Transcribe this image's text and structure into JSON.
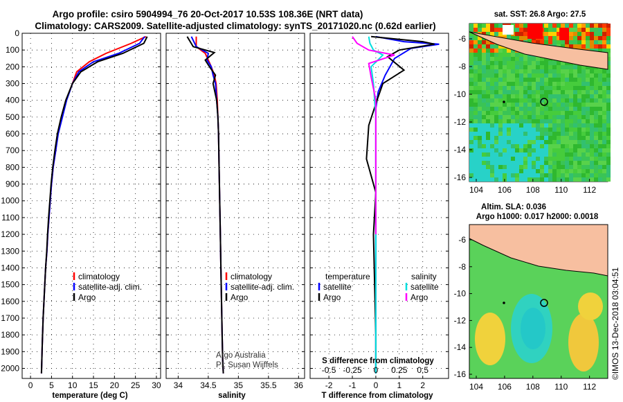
{
  "header": {
    "title_line1": "Argo profile: csiro 5904994_76 20-Oct-2017 10.53S 108.36E (NRT data)",
    "title_line2": "Climatology: CARS2009. Satellite-adjusted climatology: synTS_20171020.nc (0.62d earlier)"
  },
  "colors": {
    "climatology": "#ff0000",
    "satellite": "#0000ff",
    "argo": "#000000",
    "sal_satellite": "#00e0e0",
    "sal_argo": "#ff00ff"
  },
  "chart_data": [
    {
      "type": "line",
      "xlabel": "temperature (deg C)",
      "ylabel": "",
      "xlim": [
        -2,
        31
      ],
      "ylim": [
        2060,
        0
      ],
      "xticks": [
        0,
        5,
        10,
        15,
        20,
        25,
        30
      ],
      "yticks": [
        0,
        100,
        200,
        300,
        400,
        500,
        600,
        700,
        800,
        900,
        1000,
        1100,
        1200,
        1300,
        1400,
        1500,
        1600,
        1700,
        1800,
        1900,
        2000
      ],
      "legend": [
        "climatology",
        "satellite-adj. clim.",
        "Argo"
      ],
      "series": [
        {
          "name": "climatology",
          "color": "#ff0000",
          "x": [
            27.5,
            24,
            18,
            14,
            11,
            10,
            8.5,
            7.5,
            6.5,
            6,
            5.4,
            5,
            4.7,
            4.4,
            4.1,
            3.9,
            3.6,
            3.4,
            3.2,
            3,
            2.8,
            2.6
          ],
          "y": [
            20,
            60,
            120,
            170,
            230,
            300,
            400,
            500,
            600,
            700,
            800,
            900,
            1000,
            1100,
            1200,
            1300,
            1400,
            1500,
            1600,
            1700,
            1850,
            2030
          ]
        },
        {
          "name": "satellite-adj. clim.",
          "color": "#0000ff",
          "x": [
            27.2,
            26,
            21,
            15,
            11.5,
            10,
            8.6,
            7.6,
            6.6,
            6,
            5.4,
            5,
            4.7,
            4.4,
            4.1,
            3.9,
            3.6,
            3.4,
            3.2,
            3,
            2.8,
            2.6
          ],
          "y": [
            20,
            60,
            120,
            170,
            230,
            300,
            400,
            500,
            600,
            700,
            800,
            900,
            1000,
            1100,
            1200,
            1300,
            1400,
            1500,
            1600,
            1700,
            1850,
            2030
          ]
        },
        {
          "name": "Argo",
          "color": "#000000",
          "x": [
            27.8,
            27,
            22,
            16,
            12,
            10,
            8.4,
            7.3,
            6.4,
            5.8,
            5.3,
            4.9,
            4.6,
            4.3,
            4.05,
            3.85,
            3.6,
            3.4,
            3.2,
            3,
            2.8,
            2.6
          ],
          "y": [
            20,
            60,
            120,
            170,
            230,
            300,
            400,
            500,
            600,
            700,
            800,
            900,
            1000,
            1100,
            1200,
            1300,
            1400,
            1500,
            1600,
            1700,
            1850,
            2030
          ]
        }
      ]
    },
    {
      "type": "line",
      "xlabel": "salinity",
      "ylabel": "",
      "xlim": [
        33.8,
        36.1
      ],
      "ylim": [
        2060,
        0
      ],
      "xticks": [
        34,
        34.5,
        35,
        35.5,
        36
      ],
      "legend": [
        "climatology",
        "satellite-adj. clim.",
        "Argo"
      ],
      "series": [
        {
          "name": "climatology",
          "color": "#ff0000",
          "x": [
            34.3,
            34.3,
            34.45,
            34.5,
            34.55,
            34.6,
            34.63,
            34.65,
            34.66,
            34.67,
            34.68,
            34.69,
            34.7,
            34.71,
            34.72,
            34.73,
            34.74,
            34.75
          ],
          "y": [
            20,
            80,
            120,
            160,
            200,
            250,
            300,
            400,
            500,
            600,
            800,
            1000,
            1200,
            1400,
            1600,
            1800,
            1950,
            2030
          ]
        },
        {
          "name": "satellite-adj. clim.",
          "color": "#0000ff",
          "x": [
            34.22,
            34.3,
            34.5,
            34.48,
            34.55,
            34.58,
            34.62,
            34.64,
            34.66,
            34.67,
            34.68,
            34.69,
            34.7,
            34.71,
            34.72,
            34.73,
            34.74,
            34.75
          ],
          "y": [
            20,
            80,
            120,
            160,
            200,
            250,
            300,
            400,
            500,
            600,
            800,
            1000,
            1200,
            1400,
            1600,
            1800,
            1950,
            2030
          ]
        },
        {
          "name": "Argo",
          "color": "#000000",
          "x": [
            34.15,
            34.25,
            34.6,
            34.45,
            34.52,
            34.62,
            34.58,
            34.64,
            34.66,
            34.67,
            34.68,
            34.69,
            34.7,
            34.71,
            34.72,
            34.73,
            34.74,
            34.75
          ],
          "y": [
            20,
            80,
            115,
            160,
            200,
            250,
            300,
            400,
            500,
            600,
            800,
            1000,
            1200,
            1400,
            1600,
            1800,
            1950,
            2030
          ]
        }
      ]
    },
    {
      "type": "line",
      "xlabel": "T difference from climatology",
      "xlabel2": "S difference from climatology",
      "xlim": [
        -2.8,
        3.1
      ],
      "ylim": [
        2060,
        0
      ],
      "xticks": [
        -2,
        -1,
        0,
        1,
        2
      ],
      "xticks_top": [
        "-0.5",
        "-0.25",
        "0",
        "0.25",
        "0.5"
      ],
      "legend_left_title": "temperature",
      "legend_right_title": "salinity",
      "legend_left": [
        "satellite",
        "Argo"
      ],
      "legend_right": [
        "satellite",
        "Argo"
      ],
      "series": [
        {
          "name": "satellite",
          "color": "#0000ff",
          "x": [
            0,
            1.2,
            2.7,
            1.5,
            0.8,
            0.4,
            0.1,
            0,
            0,
            0,
            0,
            0,
            0,
            0
          ],
          "y": [
            20,
            50,
            65,
            90,
            150,
            250,
            350,
            450,
            600,
            800,
            1000,
            1400,
            1800,
            2030
          ]
        },
        {
          "name": "Argo",
          "color": "#000000",
          "x": [
            -0.2,
            2.0,
            2.5,
            1.0,
            0.5,
            1.2,
            0.3,
            0.05,
            -0.3,
            -0.4,
            0,
            -0.1,
            -0.05,
            0,
            0
          ],
          "y": [
            20,
            50,
            65,
            100,
            140,
            220,
            300,
            400,
            550,
            750,
            950,
            1200,
            1500,
            1800,
            2030
          ]
        },
        {
          "name": "satellite",
          "color": "#00e0e0",
          "x": [
            -0.3,
            -0.25,
            -0.1,
            0.3,
            -0.2,
            -0.1,
            0,
            0,
            0,
            0,
            0,
            0
          ],
          "y": [
            20,
            60,
            100,
            130,
            200,
            300,
            500,
            800,
            1100,
            1500,
            1800,
            2030
          ]
        },
        {
          "name": "Argo",
          "color": "#ff00ff",
          "x": [
            -1.0,
            -0.8,
            -0.3,
            0.8,
            -0.3,
            -0.2,
            0,
            0,
            0,
            0
          ],
          "y": [
            20,
            60,
            100,
            130,
            180,
            260,
            400,
            700,
            1000,
            1200
          ]
        }
      ]
    }
  ],
  "maps": {
    "sst_title": "sat. SST: 26.8 Argo: 27.5",
    "sla_title_line1": "Altim. SLA: 0.036",
    "sla_title_line2": "Argo h1000: 0.017 h2000: 0.0018",
    "lat_ticks": [
      "-6",
      "-8",
      "-10",
      "-12",
      "-14",
      "-16"
    ],
    "lon_ticks": [
      "104",
      "106",
      "108",
      "110",
      "112"
    ]
  },
  "notes": {
    "argo_australia": "Argo Australia",
    "pi": "PI: Susan Wijffels",
    "stamp": "©IMOS 13-Dec-2018 03:04:51"
  }
}
